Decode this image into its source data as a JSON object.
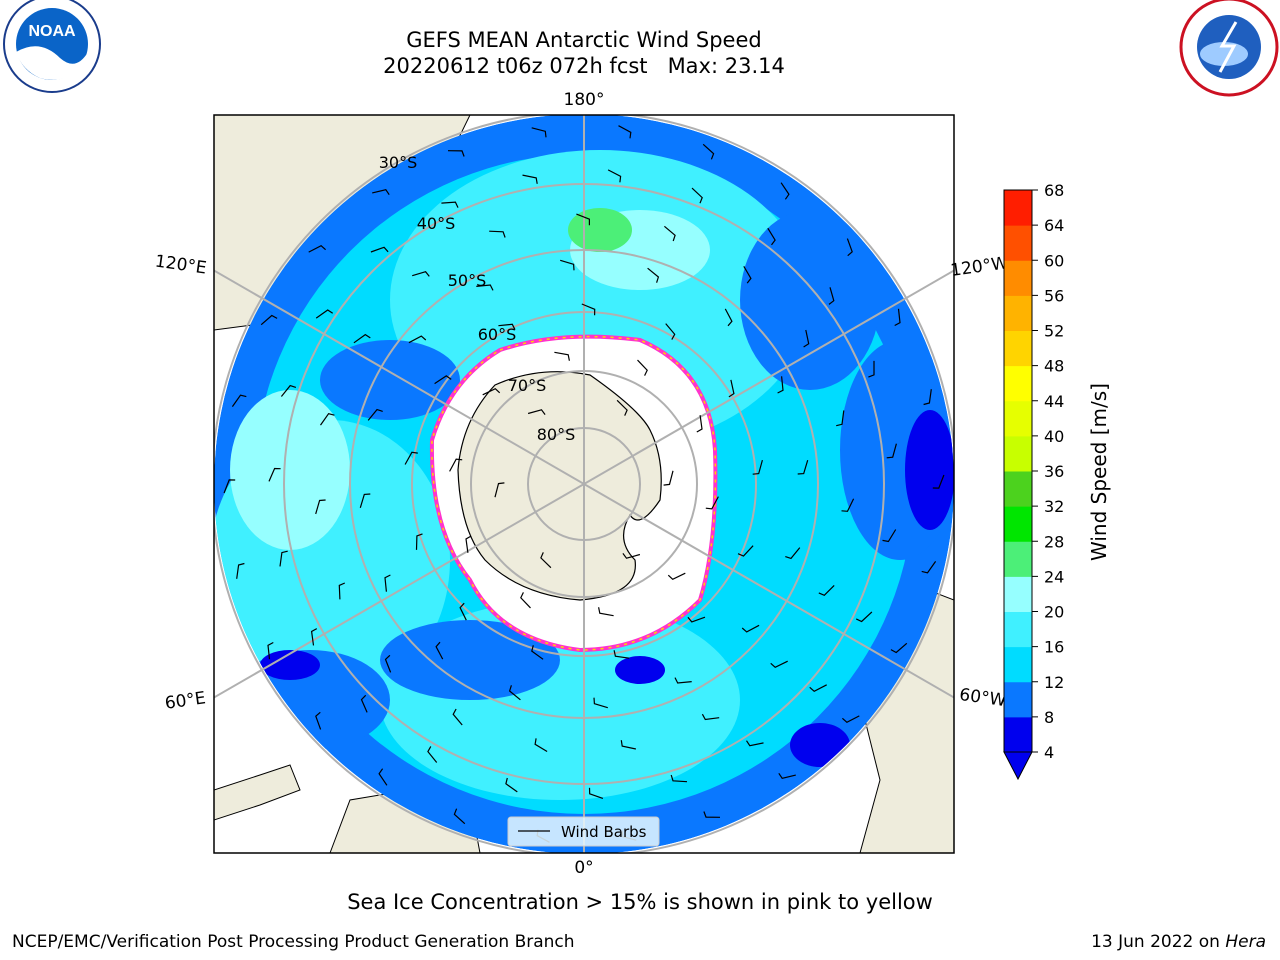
{
  "title": {
    "line1": "GEFS MEAN Antarctic Wind Speed",
    "line2": "20220612 t06z 072h fcst   Max: 23.14"
  },
  "logos": {
    "noaa": {
      "text": "NOAA",
      "icon": "noaa-logo"
    },
    "nws": {
      "icon": "national-weather-service-logo"
    }
  },
  "map": {
    "projection": "south-polar-stereographic",
    "longitude_labels": {
      "top": "180°",
      "bottom": "0°",
      "upper_left": "120°E",
      "upper_right": "120°W",
      "lower_left": "60°E",
      "lower_right": "60°W"
    },
    "latitude_labels": [
      "30°S",
      "40°S",
      "50°S",
      "60°S",
      "70°S",
      "80°S"
    ],
    "legend_label": "Wind Barbs",
    "colors": {
      "land": "#eeecdc",
      "sea_ice": "#ffffff",
      "ice_edge": "#ff33cc",
      "grid": "#b0b0b0"
    }
  },
  "colorbar": {
    "label": "Wind Speed [m/s]",
    "ticks": [
      "4",
      "8",
      "12",
      "16",
      "20",
      "24",
      "28",
      "32",
      "36",
      "40",
      "44",
      "48",
      "52",
      "56",
      "60",
      "64",
      "68"
    ],
    "colors": [
      "#0000ee",
      "#0a78ff",
      "#00dcff",
      "#40f0ff",
      "#96ffff",
      "#4cef78",
      "#00e600",
      "#4cd21e",
      "#c8ff00",
      "#e6ff00",
      "#ffff00",
      "#ffd400",
      "#ffb300",
      "#ff8c00",
      "#ff5000",
      "#ff1e00"
    ],
    "under_color": "#0000ee"
  },
  "caption": "Sea Ice Concentration > 15% is shown in pink to yellow",
  "footer": {
    "left": "NCEP/EMC/Verification Post Processing Product Generation Branch",
    "right_date": "13 Jun 2022 on ",
    "right_machine": "Hera"
  }
}
